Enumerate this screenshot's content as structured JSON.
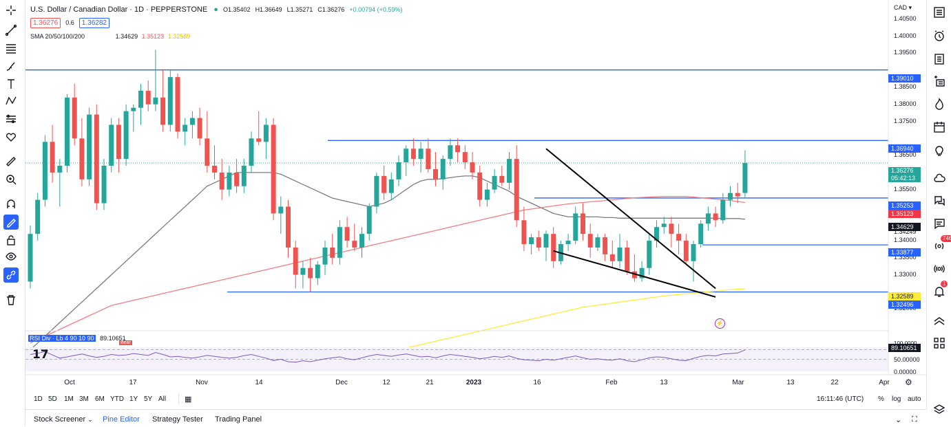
{
  "header": {
    "symbol_title": "U.S. Dollar / Canadian Dollar · 1D · PEPPERSTONE",
    "ohlc_o": "O1.35402",
    "ohlc_h": "H1.36649",
    "ohlc_l": "L1.35271",
    "ohlc_c": "C1.36276",
    "ohlc_change": "+0.00794 (+0.59%)",
    "sell_price": "1.36276",
    "spread": "0.6",
    "buy_price": "1.36282",
    "sma_label": "SMA 20/50/100/200",
    "sma_v1": "1.34629",
    "sma_v2": "1.35123",
    "sma_v3": "1.32589",
    "currency": "CAD",
    "rsi_label": "RSI Div · Lb 4 90 10 90",
    "rsi_value": "89.10651",
    "bear_label": "Bear"
  },
  "price_axis": [
    "1.40500",
    "1.40000",
    "1.39500",
    "1.38500",
    "1.38000",
    "1.37500",
    "1.36500",
    "1.35500",
    "1.34249",
    "1.34000",
    "1.33500",
    "1.33000",
    "1.32000"
  ],
  "price_tags": {
    "r1": "1.39010",
    "r2": "1.36940",
    "current": "1.36276",
    "countdown": "05:42:13",
    "s1": "1.35253",
    "sma50": "1.35123",
    "sma20": "1.34629",
    "s2": "1.33877",
    "sma200": "1.32589",
    "s3": "1.32496"
  },
  "rsi_axis": {
    "top": "100.0000",
    "value": "89.10651",
    "mid": "50.00000",
    "bottom": "0.00000"
  },
  "time_axis": [
    "Oct",
    "17",
    "Nov",
    "14",
    "Dec",
    "12",
    "21",
    "2023",
    "16",
    "Feb",
    "13",
    "Mar",
    "13",
    "22",
    "Apr"
  ],
  "timeframes": [
    "1D",
    "5D",
    "1M",
    "3M",
    "6M",
    "YTD",
    "1Y",
    "5Y",
    "All"
  ],
  "status": {
    "clock": "16:11:46 (UTC)",
    "pct": "%",
    "log": "log",
    "auto": "auto"
  },
  "bottom_tabs": [
    "Stock Screener",
    "Pine Editor",
    "Strategy Tester",
    "Trading Panel"
  ],
  "right_badges": {
    "ideas": "746",
    "alerts": "1"
  },
  "colors": {
    "up": "#26a69a",
    "down": "#ef5350",
    "level": "#2962ff",
    "sma20": "#787b86",
    "sma50": "#f77c80",
    "sma200": "#ffeb3b"
  },
  "chart_data": {
    "type": "candlestick",
    "x_labels": [
      "Oct",
      "17",
      "Nov",
      "14",
      "Dec",
      "12",
      "21",
      "2023",
      "16",
      "Feb",
      "13",
      "Mar",
      "13",
      "22",
      "Apr"
    ],
    "ylim": [
      1.315,
      1.409
    ],
    "horizontal_levels": [
      1.3901,
      1.3694,
      1.35253,
      1.33877,
      1.32496
    ],
    "candles": [
      [
        1.328,
        1.3445,
        1.326,
        1.342
      ],
      [
        1.342,
        1.354,
        1.34,
        1.352
      ],
      [
        1.352,
        1.371,
        1.35,
        1.369
      ],
      [
        1.369,
        1.374,
        1.357,
        1.36
      ],
      [
        1.36,
        1.364,
        1.35,
        1.362
      ],
      [
        1.362,
        1.383,
        1.36,
        1.382
      ],
      [
        1.382,
        1.386,
        1.368,
        1.37
      ],
      [
        1.37,
        1.376,
        1.356,
        1.358
      ],
      [
        1.358,
        1.379,
        1.356,
        1.377
      ],
      [
        1.377,
        1.38,
        1.349,
        1.351
      ],
      [
        1.351,
        1.364,
        1.349,
        1.362
      ],
      [
        1.362,
        1.376,
        1.36,
        1.374
      ],
      [
        1.374,
        1.376,
        1.36,
        1.364
      ],
      [
        1.364,
        1.38,
        1.362,
        1.378
      ],
      [
        1.378,
        1.38,
        1.372,
        1.379
      ],
      [
        1.379,
        1.386,
        1.374,
        1.384
      ],
      [
        1.384,
        1.387,
        1.378,
        1.38
      ],
      [
        1.38,
        1.396,
        1.378,
        1.382
      ],
      [
        1.382,
        1.39,
        1.372,
        1.374
      ],
      [
        1.374,
        1.39,
        1.372,
        1.388
      ],
      [
        1.388,
        1.389,
        1.37,
        1.372
      ],
      [
        1.372,
        1.376,
        1.368,
        1.374
      ],
      [
        1.374,
        1.378,
        1.37,
        1.376
      ],
      [
        1.376,
        1.379,
        1.368,
        1.37
      ],
      [
        1.37,
        1.378,
        1.36,
        1.362
      ],
      [
        1.362,
        1.368,
        1.358,
        1.36
      ],
      [
        1.36,
        1.364,
        1.352,
        1.355
      ],
      [
        1.355,
        1.362,
        1.353,
        1.36
      ],
      [
        1.36,
        1.364,
        1.354,
        1.356
      ],
      [
        1.356,
        1.364,
        1.354,
        1.362
      ],
      [
        1.362,
        1.372,
        1.36,
        1.37
      ],
      [
        1.37,
        1.378,
        1.368,
        1.369
      ],
      [
        1.369,
        1.376,
        1.364,
        1.374
      ],
      [
        1.374,
        1.376,
        1.346,
        1.348
      ],
      [
        1.348,
        1.353,
        1.342,
        1.35
      ],
      [
        1.35,
        1.352,
        1.335,
        1.338
      ],
      [
        1.338,
        1.34,
        1.326,
        1.33
      ],
      [
        1.33,
        1.334,
        1.326,
        1.332
      ],
      [
        1.332,
        1.335,
        1.325,
        1.329
      ],
      [
        1.329,
        1.334,
        1.327,
        1.333
      ],
      [
        1.333,
        1.34,
        1.33,
        1.338
      ],
      [
        1.338,
        1.342,
        1.333,
        1.335
      ],
      [
        1.335,
        1.346,
        1.333,
        1.344
      ],
      [
        1.344,
        1.347,
        1.338,
        1.34
      ],
      [
        1.34,
        1.345,
        1.337,
        1.338
      ],
      [
        1.338,
        1.344,
        1.335,
        1.342
      ],
      [
        1.342,
        1.351,
        1.34,
        1.35
      ],
      [
        1.35,
        1.36,
        1.348,
        1.359
      ],
      [
        1.359,
        1.362,
        1.352,
        1.354
      ],
      [
        1.354,
        1.36,
        1.352,
        1.358
      ],
      [
        1.358,
        1.365,
        1.356,
        1.363
      ],
      [
        1.363,
        1.368,
        1.359,
        1.367
      ],
      [
        1.367,
        1.37,
        1.362,
        1.364
      ],
      [
        1.364,
        1.369,
        1.36,
        1.367
      ],
      [
        1.367,
        1.37,
        1.36,
        1.361
      ],
      [
        1.361,
        1.366,
        1.356,
        1.358
      ],
      [
        1.358,
        1.365,
        1.355,
        1.364
      ],
      [
        1.364,
        1.37,
        1.362,
        1.368
      ],
      [
        1.368,
        1.37,
        1.363,
        1.366
      ],
      [
        1.366,
        1.368,
        1.361,
        1.363
      ],
      [
        1.363,
        1.366,
        1.358,
        1.36
      ],
      [
        1.36,
        1.362,
        1.35,
        1.352
      ],
      [
        1.352,
        1.357,
        1.35,
        1.355
      ],
      [
        1.355,
        1.361,
        1.354,
        1.359
      ],
      [
        1.359,
        1.362,
        1.356,
        1.357
      ],
      [
        1.357,
        1.366,
        1.355,
        1.364
      ],
      [
        1.364,
        1.368,
        1.344,
        1.346
      ],
      [
        1.346,
        1.35,
        1.337,
        1.339
      ],
      [
        1.339,
        1.342,
        1.336,
        1.341
      ],
      [
        1.341,
        1.343,
        1.337,
        1.338
      ],
      [
        1.338,
        1.343,
        1.334,
        1.342
      ],
      [
        1.342,
        1.344,
        1.332,
        1.334
      ],
      [
        1.334,
        1.34,
        1.333,
        1.339
      ],
      [
        1.339,
        1.342,
        1.337,
        1.34
      ],
      [
        1.34,
        1.35,
        1.339,
        1.348
      ],
      [
        1.348,
        1.351,
        1.34,
        1.342
      ],
      [
        1.342,
        1.345,
        1.335,
        1.338
      ],
      [
        1.338,
        1.342,
        1.337,
        1.341
      ],
      [
        1.341,
        1.342,
        1.334,
        1.336
      ],
      [
        1.336,
        1.34,
        1.332,
        1.334
      ],
      [
        1.334,
        1.342,
        1.332,
        1.338
      ],
      [
        1.338,
        1.34,
        1.33,
        1.331
      ],
      [
        1.331,
        1.336,
        1.328,
        1.329
      ],
      [
        1.329,
        1.334,
        1.328,
        1.332
      ],
      [
        1.332,
        1.342,
        1.33,
        1.34
      ],
      [
        1.34,
        1.346,
        1.338,
        1.344
      ],
      [
        1.344,
        1.347,
        1.342,
        1.345
      ],
      [
        1.345,
        1.347,
        1.338,
        1.342
      ],
      [
        1.342,
        1.345,
        1.336,
        1.34
      ],
      [
        1.34,
        1.342,
        1.333,
        1.334
      ],
      [
        1.334,
        1.34,
        1.328,
        1.339
      ],
      [
        1.339,
        1.346,
        1.338,
        1.345
      ],
      [
        1.345,
        1.35,
        1.343,
        1.348
      ],
      [
        1.348,
        1.35,
        1.344,
        1.346
      ],
      [
        1.346,
        1.354,
        1.345,
        1.352
      ],
      [
        1.352,
        1.356,
        1.35,
        1.354
      ],
      [
        1.354,
        1.357,
        1.351,
        1.353
      ],
      [
        1.354,
        1.3665,
        1.3527,
        1.3628
      ]
    ],
    "sma_series": [
      {
        "values": [
          1.308,
          1.31,
          1.312,
          1.314,
          1.316,
          1.318,
          1.32,
          1.322,
          1.324,
          1.326,
          1.328,
          1.33,
          1.332,
          1.334,
          1.336,
          1.338,
          1.34,
          1.342,
          1.344,
          1.346,
          1.348,
          1.35,
          1.352,
          1.354,
          1.356,
          1.357,
          1.358,
          1.359,
          1.36,
          1.36,
          1.36,
          1.36,
          1.36,
          1.36,
          1.3595,
          1.3585,
          1.3575,
          1.3565,
          1.3555,
          1.3545,
          1.3535,
          1.3525,
          1.352,
          1.3515,
          1.351,
          1.3505,
          1.35,
          1.3505,
          1.351,
          1.352,
          1.3535,
          1.355,
          1.3565,
          1.3575,
          1.358,
          1.358,
          1.3582,
          1.3585,
          1.3588,
          1.359,
          1.359,
          1.3585,
          1.3575,
          1.3565,
          1.3555,
          1.3545,
          1.353,
          1.352,
          1.351,
          1.35,
          1.349,
          1.348,
          1.3475,
          1.347,
          1.347,
          1.347,
          1.347,
          1.347,
          1.3468,
          1.3468,
          1.3466,
          1.3466,
          1.3466,
          1.3466,
          1.3466,
          1.3466,
          1.3466,
          1.3466,
          1.3466,
          1.3466,
          1.3466,
          1.3466,
          1.3466,
          1.3466,
          1.3465,
          1.3465,
          1.3465,
          1.3463
        ]
      },
      {
        "values": [
          1.31,
          1.311,
          1.312,
          1.313,
          1.314,
          1.315,
          1.316,
          1.317,
          1.318,
          1.319,
          1.32,
          1.321,
          1.3215,
          1.322,
          1.3225,
          1.323,
          1.3235,
          1.324,
          1.3245,
          1.325,
          1.3255,
          1.326,
          1.3265,
          1.327,
          1.3275,
          1.328,
          1.3285,
          1.329,
          1.3295,
          1.33,
          1.3305,
          1.331,
          1.3315,
          1.332,
          1.3325,
          1.333,
          1.3335,
          1.334,
          1.3345,
          1.335,
          1.3355,
          1.336,
          1.3365,
          1.337,
          1.3375,
          1.338,
          1.3385,
          1.339,
          1.3395,
          1.34,
          1.3405,
          1.341,
          1.3415,
          1.342,
          1.3425,
          1.343,
          1.3435,
          1.344,
          1.3445,
          1.345,
          1.3455,
          1.346,
          1.3465,
          1.347,
          1.3475,
          1.348,
          1.3485,
          1.349,
          1.3493,
          1.3496,
          1.3499,
          1.3502,
          1.3505,
          1.3508,
          1.351,
          1.3512,
          1.3514,
          1.3516,
          1.3518,
          1.352,
          1.3522,
          1.3524,
          1.3526,
          1.3527,
          1.3528,
          1.3529,
          1.353,
          1.353,
          1.353,
          1.353,
          1.3528,
          1.3526,
          1.3524,
          1.3522,
          1.352,
          1.3518,
          1.3515,
          1.3512
        ]
      },
      {
        "values": [
          1.304,
          1.3045,
          1.305,
          1.3055,
          1.306,
          1.3065,
          1.307,
          1.3075,
          1.308,
          1.3085,
          1.309,
          1.3095,
          1.31,
          1.3105,
          1.311,
          1.3115,
          1.312,
          1.3125,
          1.313,
          1.3135,
          1.314,
          1.3145,
          1.315,
          1.3155,
          1.316,
          1.3165,
          1.317,
          1.3175,
          1.318,
          1.3185,
          1.319,
          1.3195,
          1.32,
          1.3205,
          1.3208,
          1.3211,
          1.3214,
          1.3217,
          1.322,
          1.3223,
          1.3226,
          1.3229,
          1.3232,
          1.3235,
          1.3238,
          1.324,
          1.3242,
          1.3244,
          1.3246,
          1.3248,
          1.325,
          1.3252,
          1.3254,
          1.3256,
          1.3258,
          1.3259
        ]
      }
    ],
    "trendlines": [
      {
        "from": [
          1.367,
          70
        ],
        "to": [
          1.326,
          93
        ]
      },
      {
        "from": [
          1.337,
          71
        ],
        "to": [
          1.3235,
          93
        ]
      }
    ],
    "rsi": {
      "ylim": [
        0,
        100
      ],
      "levels": [
        90,
        50
      ],
      "values": [
        70,
        75,
        82,
        68,
        55,
        60,
        66,
        72,
        64,
        58,
        62,
        70,
        66,
        68,
        74,
        70,
        66,
        78,
        70,
        60,
        62,
        58,
        55,
        60,
        66,
        62,
        58,
        55,
        58,
        65,
        70,
        62,
        55,
        45,
        50,
        40,
        38,
        44,
        40,
        46,
        52,
        56,
        60,
        52,
        48,
        56,
        64,
        70,
        66,
        62,
        68,
        72,
        66,
        60,
        62,
        56,
        64,
        70,
        66,
        62,
        58,
        52,
        56,
        62,
        58,
        64,
        54,
        48,
        46,
        44,
        50,
        46,
        52,
        58,
        64,
        56,
        50,
        52,
        48,
        46,
        52,
        44,
        40,
        48,
        56,
        60,
        58,
        52,
        46,
        44,
        54,
        62,
        66,
        64,
        72,
        74,
        76,
        89
      ]
    }
  }
}
